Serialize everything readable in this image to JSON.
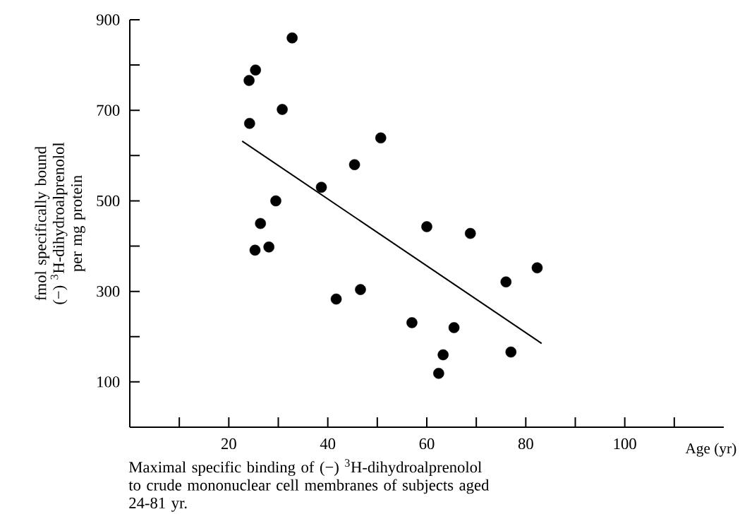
{
  "chart_data": {
    "type": "scatter",
    "xlabel": "Age (yr)",
    "ylabel": "fmol specifically bound (−) $^{3}$H-dihydroalprenolol per mg protein",
    "annotations": [
      "Maximal specific binding of (−) $^{3}$H-dihydroalprenolol to crude mononuclear cell membranes of subjects aged 24-81 yr."
    ],
    "xlim": [
      0,
      120
    ],
    "ylim": [
      0,
      900
    ],
    "xticks": [
      {
        "value": 10,
        "label": null
      },
      20,
      {
        "value": 30,
        "label": null
      },
      40,
      {
        "value": 50,
        "label": null
      },
      60,
      {
        "value": 70,
        "label": null
      },
      80,
      {
        "value": 90,
        "label": null
      },
      100,
      {
        "value": 110,
        "label": null
      }
    ],
    "yticks": [
      100,
      {
        "value": 200,
        "label": null
      },
      300,
      {
        "value": 400,
        "label": null
      },
      500,
      {
        "value": 600,
        "label": null
      },
      700,
      {
        "value": 800,
        "label": null
      },
      900
    ],
    "series": [
      {
        "color": "#000000",
        "marker": "circle",
        "x": [
          32.8,
          25.4,
          24.1,
          30.8,
          24.2,
          50.7,
          45.4,
          38.7,
          29.5,
          26.4,
          25.3,
          28.1,
          60.0,
          68.8,
          82.3,
          76.0,
          46.6,
          41.7,
          57.0,
          65.5,
          77.0,
          63.3,
          62.4
        ],
        "values": [
          860,
          789,
          766,
          702,
          671,
          639,
          580,
          530,
          500,
          450,
          391,
          398,
          443,
          428,
          352,
          321,
          304,
          283,
          231,
          220,
          166,
          160,
          119
        ]
      },
      {
        "type": "line",
        "color": "#000000",
        "marker": "none",
        "x": [
          22.7,
          83.2
        ],
        "values": [
          632,
          185
        ]
      }
    ]
  }
}
